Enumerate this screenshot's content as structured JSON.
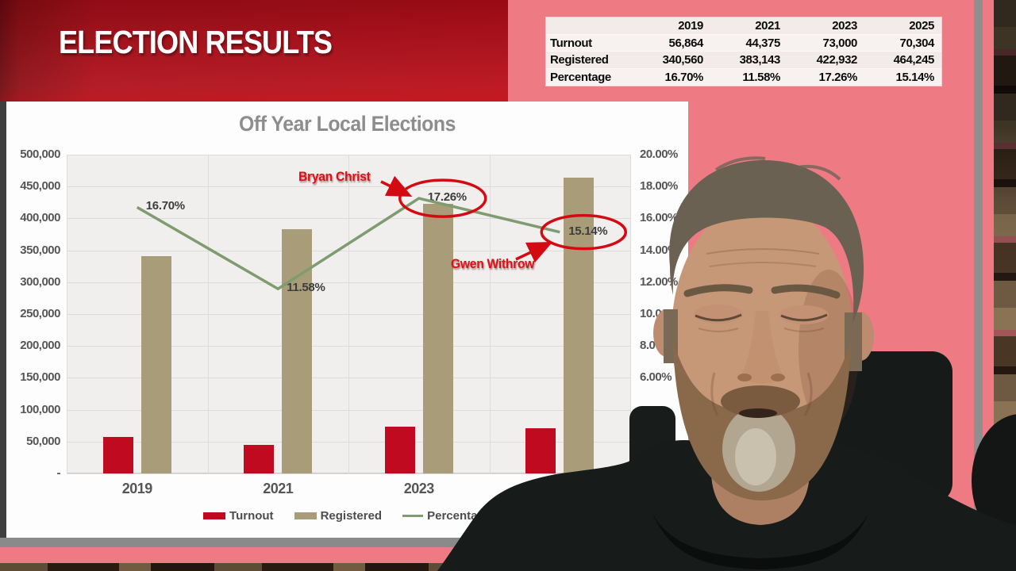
{
  "banner": {
    "title": "ELECTION RESULTS"
  },
  "summary_table": {
    "corner": "",
    "years": [
      "2019",
      "2021",
      "2023",
      "2025"
    ],
    "rows": [
      {
        "label": "Turnout",
        "values": [
          "56,864",
          "44,375",
          "73,000",
          "70,304"
        ]
      },
      {
        "label": "Registered",
        "values": [
          "340,560",
          "383,143",
          "422,932",
          "464,245"
        ]
      },
      {
        "label": "Percentage",
        "values": [
          "16.70%",
          "11.58%",
          "17.26%",
          "15.14%"
        ]
      }
    ]
  },
  "chart_data": {
    "type": "bar",
    "title": "Off Year Local Elections",
    "categories": [
      "2019",
      "2021",
      "2023",
      "2025"
    ],
    "visible_x_tick_labels": [
      "2019",
      "2021",
      "2023"
    ],
    "series": [
      {
        "name": "Turnout",
        "type": "bar",
        "axis": "left",
        "color": "#c00a1f",
        "values": [
          56864,
          44375,
          73000,
          70304
        ]
      },
      {
        "name": "Registered",
        "type": "bar",
        "axis": "left",
        "color": "#a99d79",
        "values": [
          340560,
          383143,
          422932,
          464245
        ]
      },
      {
        "name": "Percentage",
        "type": "line",
        "axis": "right",
        "color": "#7f9b70",
        "values": [
          16.7,
          11.58,
          17.26,
          15.14
        ],
        "point_labels": [
          "16.70%",
          "11.58%",
          "17.26%",
          "15.14%"
        ]
      }
    ],
    "left_axis": {
      "min": 0,
      "max": 500000,
      "step": 50000,
      "tick_labels": [
        "500,000",
        "450,000",
        "400,000",
        "350,000",
        "300,000",
        "250,000",
        "200,000",
        "150,000",
        "100,000",
        "50,000",
        "-"
      ]
    },
    "right_axis": {
      "min": 0,
      "max": 20,
      "step": 2,
      "visible_tick_labels": [
        "20.00%",
        "18.00%",
        "16.00%",
        "14.00%",
        "12.00%",
        "10.00%",
        "8.00%",
        "6.00%"
      ]
    },
    "legend": [
      "Turnout",
      "Registered",
      "Percentage"
    ],
    "legend_position": "bottom",
    "grid": true,
    "annotations": [
      {
        "text": "Bryan Christ",
        "target_category": "2023",
        "target_label": "17.26%"
      },
      {
        "text": "Gwen Withrow",
        "target_category": "2025",
        "target_label": "15.14%"
      }
    ]
  },
  "colors": {
    "background_pink": "#ee7a84",
    "banner_red": "#b00f1a",
    "bar_red": "#c00a1f",
    "bar_tan": "#a99d79",
    "line_green": "#7f9b70",
    "annotation_red": "#de1016",
    "panel_white": "#fdfdfd",
    "plot_gray": "#f0efed",
    "strip_gray": "#8a8a8a"
  }
}
